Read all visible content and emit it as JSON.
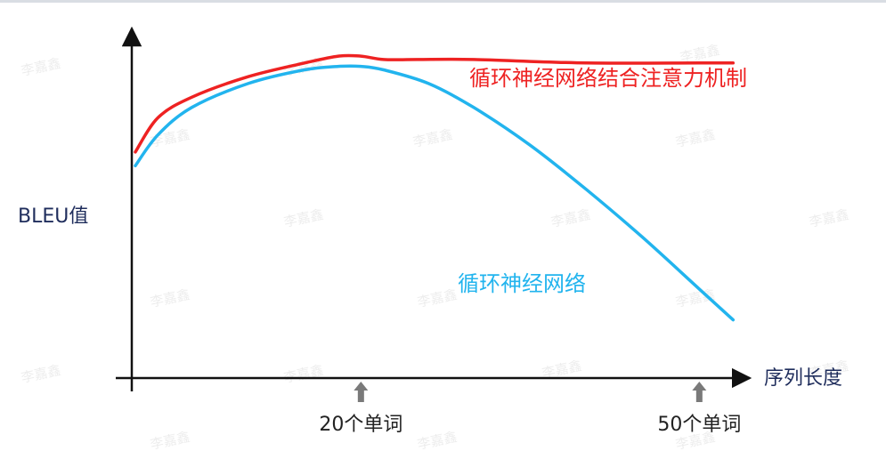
{
  "watermark": "李嘉鑫",
  "chart_data": {
    "type": "line",
    "ylabel": "BLEU值",
    "xlabel": "序列长度",
    "x_ticks": [
      {
        "x": 20,
        "label": "20个单词"
      },
      {
        "x": 50,
        "label": "50个单词"
      }
    ],
    "xlim": [
      0,
      60
    ],
    "ylim": [
      0,
      1
    ],
    "grid": false,
    "legend": "inline",
    "series": [
      {
        "name": "循环神经网络结合注意力机制",
        "color": "#ee2222",
        "x": [
          0,
          2,
          5,
          10,
          15,
          18,
          20,
          22,
          25,
          30,
          40,
          50,
          53
        ],
        "y": [
          0.66,
          0.76,
          0.82,
          0.88,
          0.92,
          0.94,
          0.94,
          0.93,
          0.93,
          0.93,
          0.92,
          0.92,
          0.92
        ]
      },
      {
        "name": "循环神经网络",
        "color": "#22b4ee",
        "x": [
          0,
          2,
          5,
          10,
          15,
          18,
          20,
          22,
          26,
          30,
          35,
          40,
          45,
          50,
          53
        ],
        "y": [
          0.62,
          0.71,
          0.79,
          0.86,
          0.9,
          0.91,
          0.91,
          0.9,
          0.86,
          0.79,
          0.68,
          0.55,
          0.41,
          0.26,
          0.17
        ]
      }
    ]
  }
}
